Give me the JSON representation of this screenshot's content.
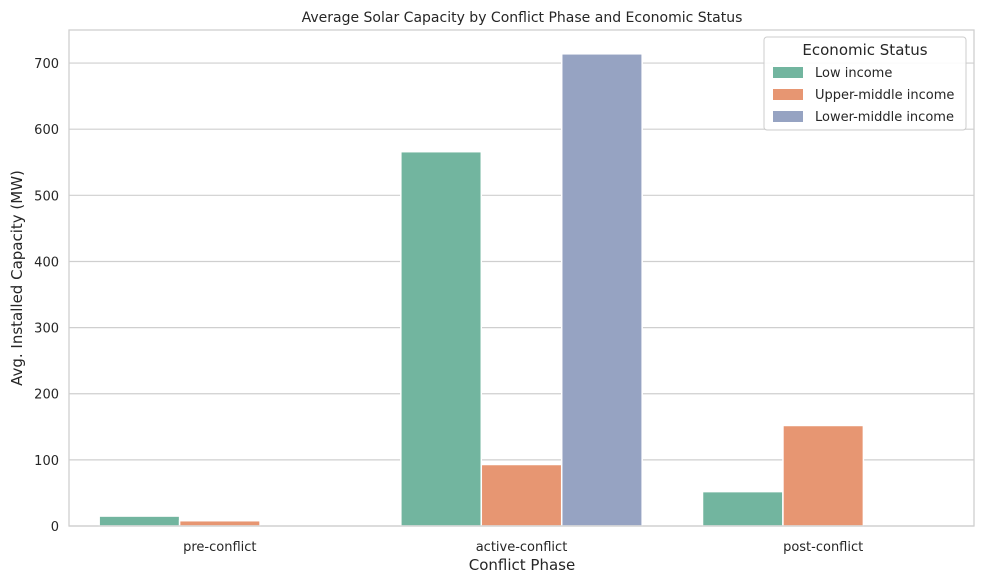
{
  "chart_data": {
    "type": "bar",
    "title": "Average Solar Capacity by Conflict Phase and Economic Status",
    "xlabel": "Conflict Phase",
    "ylabel": "Avg. Installed Capacity (MW)",
    "categories": [
      "pre-conflict",
      "active-conflict",
      "post-conflict"
    ],
    "ylim": [
      0,
      750
    ],
    "yticks": [
      0,
      100,
      200,
      300,
      400,
      500,
      600,
      700
    ],
    "grid": "y",
    "legend": {
      "title": "Economic Status",
      "placement": "top-right"
    },
    "series": [
      {
        "name": "Low income",
        "color": "#72b59f",
        "values": [
          15,
          566,
          52
        ]
      },
      {
        "name": "Upper-middle income",
        "color": "#e79672",
        "values": [
          8,
          93,
          152
        ]
      },
      {
        "name": "Lower-middle income",
        "color": "#96a3c2",
        "values": [
          0,
          714,
          0
        ]
      }
    ]
  }
}
